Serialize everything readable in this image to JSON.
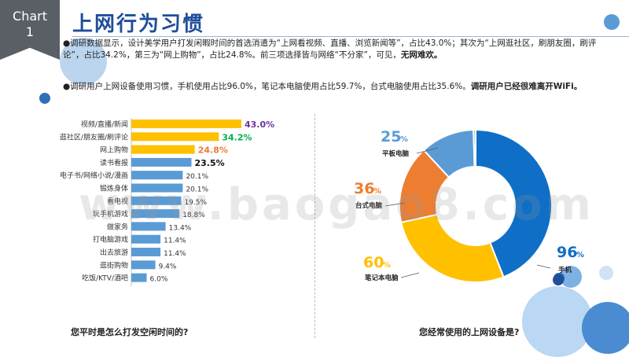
{
  "badge": {
    "line1": "Chart",
    "line2": "1"
  },
  "title": "上网行为习惯",
  "paragraphs": {
    "p1_bullet": "●",
    "p1_text": "调研数据显示，设计美学用户打发闲暇时间的首选消遣为“上网看视频、直播、浏览新闻等”，占比43.0%；其次为“上网逛社区，刷朋友圈，刷评论”，占比34.2%，第三为“网上购物”，占比24.8%。前三项选择皆与网络“不分家”，可见，",
    "p1_bold": "无网难欢。",
    "p2_bullet": "●",
    "p2_text": "调研用户上网设备使用习惯，手机使用占比96.0%，笔记本电脑使用占比59.7%，台式电脑使用占比35.6%。",
    "p2_bold": "调研用户已经很难离开WiFi。"
  },
  "captions": {
    "left": "您平时是怎么打发空闲时间的?",
    "right": "您经常使用的上网设备是?"
  },
  "watermark": "www.baogao8.com",
  "colors": {
    "bar_gold": "#ffc000",
    "bar_blue": "#5b9bd5",
    "phone": "#0f6fc6",
    "laptop": "#ffc000",
    "desktop": "#ed7d31",
    "tablet": "#5b9bd5",
    "gray": "#a5a5a5",
    "label_purple": "#7030a0",
    "label_green": "#00b050",
    "label_orange": "#ed7d31"
  },
  "chart_data": [
    {
      "type": "bar",
      "orientation": "horizontal",
      "title": "",
      "categories": [
        "视频/直播/新闻",
        "逛社区/朋友圈/刷评论",
        "网上购物",
        "读书看报",
        "电子书/网络小说/漫画",
        "锻炼身体",
        "看电视",
        "玩手机游戏",
        "做家务",
        "打电脑游戏",
        "出去旅游",
        "逛街购物",
        "吃饭/KTV/酒吧"
      ],
      "values": [
        43.0,
        34.2,
        24.8,
        23.5,
        20.1,
        20.1,
        19.5,
        18.8,
        13.4,
        11.4,
        11.4,
        9.4,
        6.0
      ],
      "value_labels": [
        "43.0%",
        "34.2%",
        "24.8%",
        "23.5%",
        "20.1%",
        "20.1%",
        "19.5%",
        "18.8%",
        "13.4%",
        "11.4%",
        "11.4%",
        "9.4%",
        "6.0%"
      ],
      "xlim": [
        0,
        45
      ],
      "grid": false
    },
    {
      "type": "pie",
      "donut": true,
      "title": "",
      "slices": [
        {
          "label": "手机",
          "value": 96,
          "display": "96",
          "unit": "%"
        },
        {
          "label": "笔记本电脑",
          "value": 60,
          "display": "60",
          "unit": "%"
        },
        {
          "label": "台式电脑",
          "value": 36,
          "display": "36",
          "unit": "%"
        },
        {
          "label": "平板电脑",
          "value": 25,
          "display": "25",
          "unit": "%"
        },
        {
          "label": "",
          "value": 1,
          "display": "",
          "unit": ""
        }
      ]
    }
  ]
}
